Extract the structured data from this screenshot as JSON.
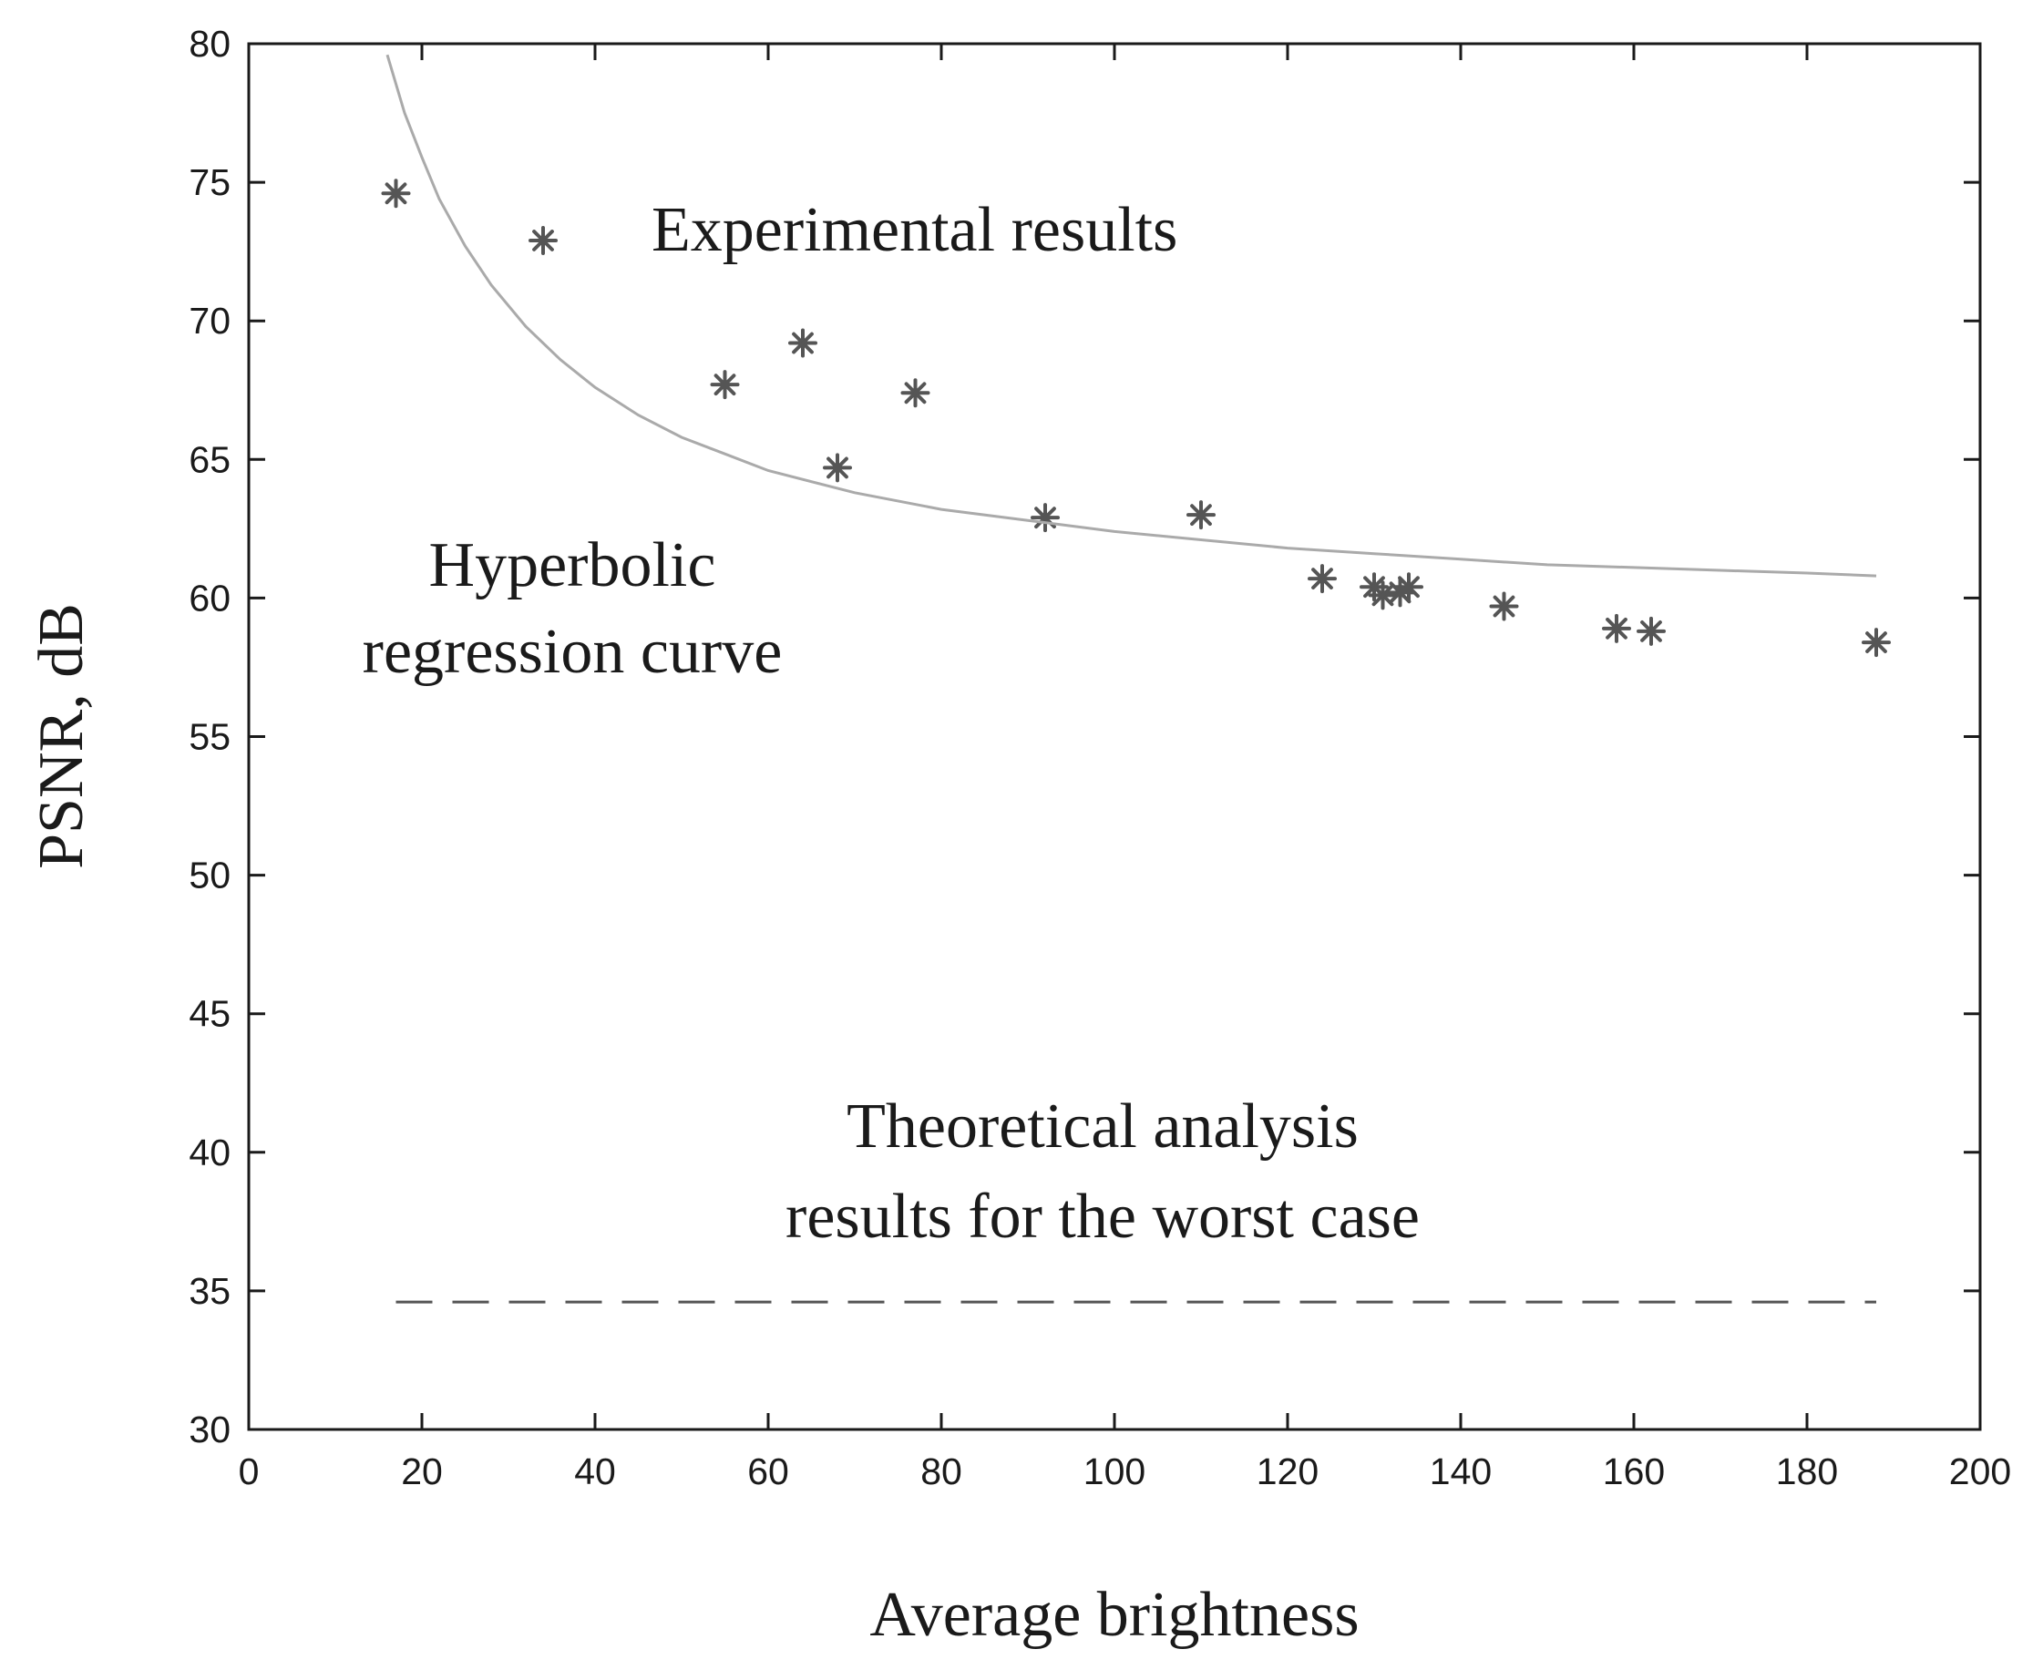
{
  "chart_data": {
    "type": "scatter",
    "title": "",
    "xlabel": "Average brightness",
    "ylabel": "PSNR, dB",
    "xlim": [
      0,
      200
    ],
    "ylim": [
      30,
      80
    ],
    "xticks": [
      "0",
      "20",
      "40",
      "60",
      "80",
      "100",
      "120",
      "140",
      "160",
      "180",
      "200"
    ],
    "yticks": [
      "30",
      "35",
      "40",
      "45",
      "50",
      "55",
      "60",
      "65",
      "70",
      "75",
      "80"
    ],
    "grid": false,
    "series": [
      {
        "name": "Experimental results",
        "kind": "scatter",
        "marker": "asterisk",
        "color": "#555555",
        "points": [
          {
            "x": 17,
            "y": 74.6
          },
          {
            "x": 34,
            "y": 72.9
          },
          {
            "x": 55,
            "y": 67.7
          },
          {
            "x": 64,
            "y": 69.2
          },
          {
            "x": 68,
            "y": 64.7
          },
          {
            "x": 77,
            "y": 67.4
          },
          {
            "x": 92,
            "y": 62.9
          },
          {
            "x": 110,
            "y": 63.0
          },
          {
            "x": 124,
            "y": 60.7
          },
          {
            "x": 130,
            "y": 60.4
          },
          {
            "x": 131,
            "y": 60.1
          },
          {
            "x": 133,
            "y": 60.2
          },
          {
            "x": 134,
            "y": 60.4
          },
          {
            "x": 145,
            "y": 59.7
          },
          {
            "x": 158,
            "y": 58.9
          },
          {
            "x": 162,
            "y": 58.8
          },
          {
            "x": 188,
            "y": 58.4
          }
        ]
      },
      {
        "name": "Hyperbolic regression curve",
        "kind": "line",
        "color": "#aaaaaa",
        "points": [
          {
            "x": 16,
            "y": 79.6
          },
          {
            "x": 18,
            "y": 77.5
          },
          {
            "x": 20,
            "y": 75.9
          },
          {
            "x": 22,
            "y": 74.4
          },
          {
            "x": 25,
            "y": 72.7
          },
          {
            "x": 28,
            "y": 71.3
          },
          {
            "x": 32,
            "y": 69.8
          },
          {
            "x": 36,
            "y": 68.6
          },
          {
            "x": 40,
            "y": 67.6
          },
          {
            "x": 45,
            "y": 66.6
          },
          {
            "x": 50,
            "y": 65.8
          },
          {
            "x": 55,
            "y": 65.2
          },
          {
            "x": 60,
            "y": 64.6
          },
          {
            "x": 70,
            "y": 63.8
          },
          {
            "x": 80,
            "y": 63.2
          },
          {
            "x": 90,
            "y": 62.8
          },
          {
            "x": 100,
            "y": 62.4
          },
          {
            "x": 110,
            "y": 62.1
          },
          {
            "x": 120,
            "y": 61.8
          },
          {
            "x": 130,
            "y": 61.6
          },
          {
            "x": 140,
            "y": 61.4
          },
          {
            "x": 150,
            "y": 61.2
          },
          {
            "x": 160,
            "y": 61.1
          },
          {
            "x": 170,
            "y": 61.0
          },
          {
            "x": 180,
            "y": 60.9
          },
          {
            "x": 188,
            "y": 60.8
          }
        ]
      },
      {
        "name": "Theoretical analysis results for the worst case",
        "kind": "dashed-line",
        "color": "#555555",
        "points": [
          {
            "x": 17,
            "y": 34.6
          },
          {
            "x": 188,
            "y": 34.6
          }
        ]
      }
    ],
    "annotations": {
      "experimental": "Experimental results",
      "regression_line1": "Hyperbolic",
      "regression_line2": "regression curve",
      "theoretical_line1": "Theoretical analysis",
      "theoretical_line2": "results for the worst case"
    }
  }
}
